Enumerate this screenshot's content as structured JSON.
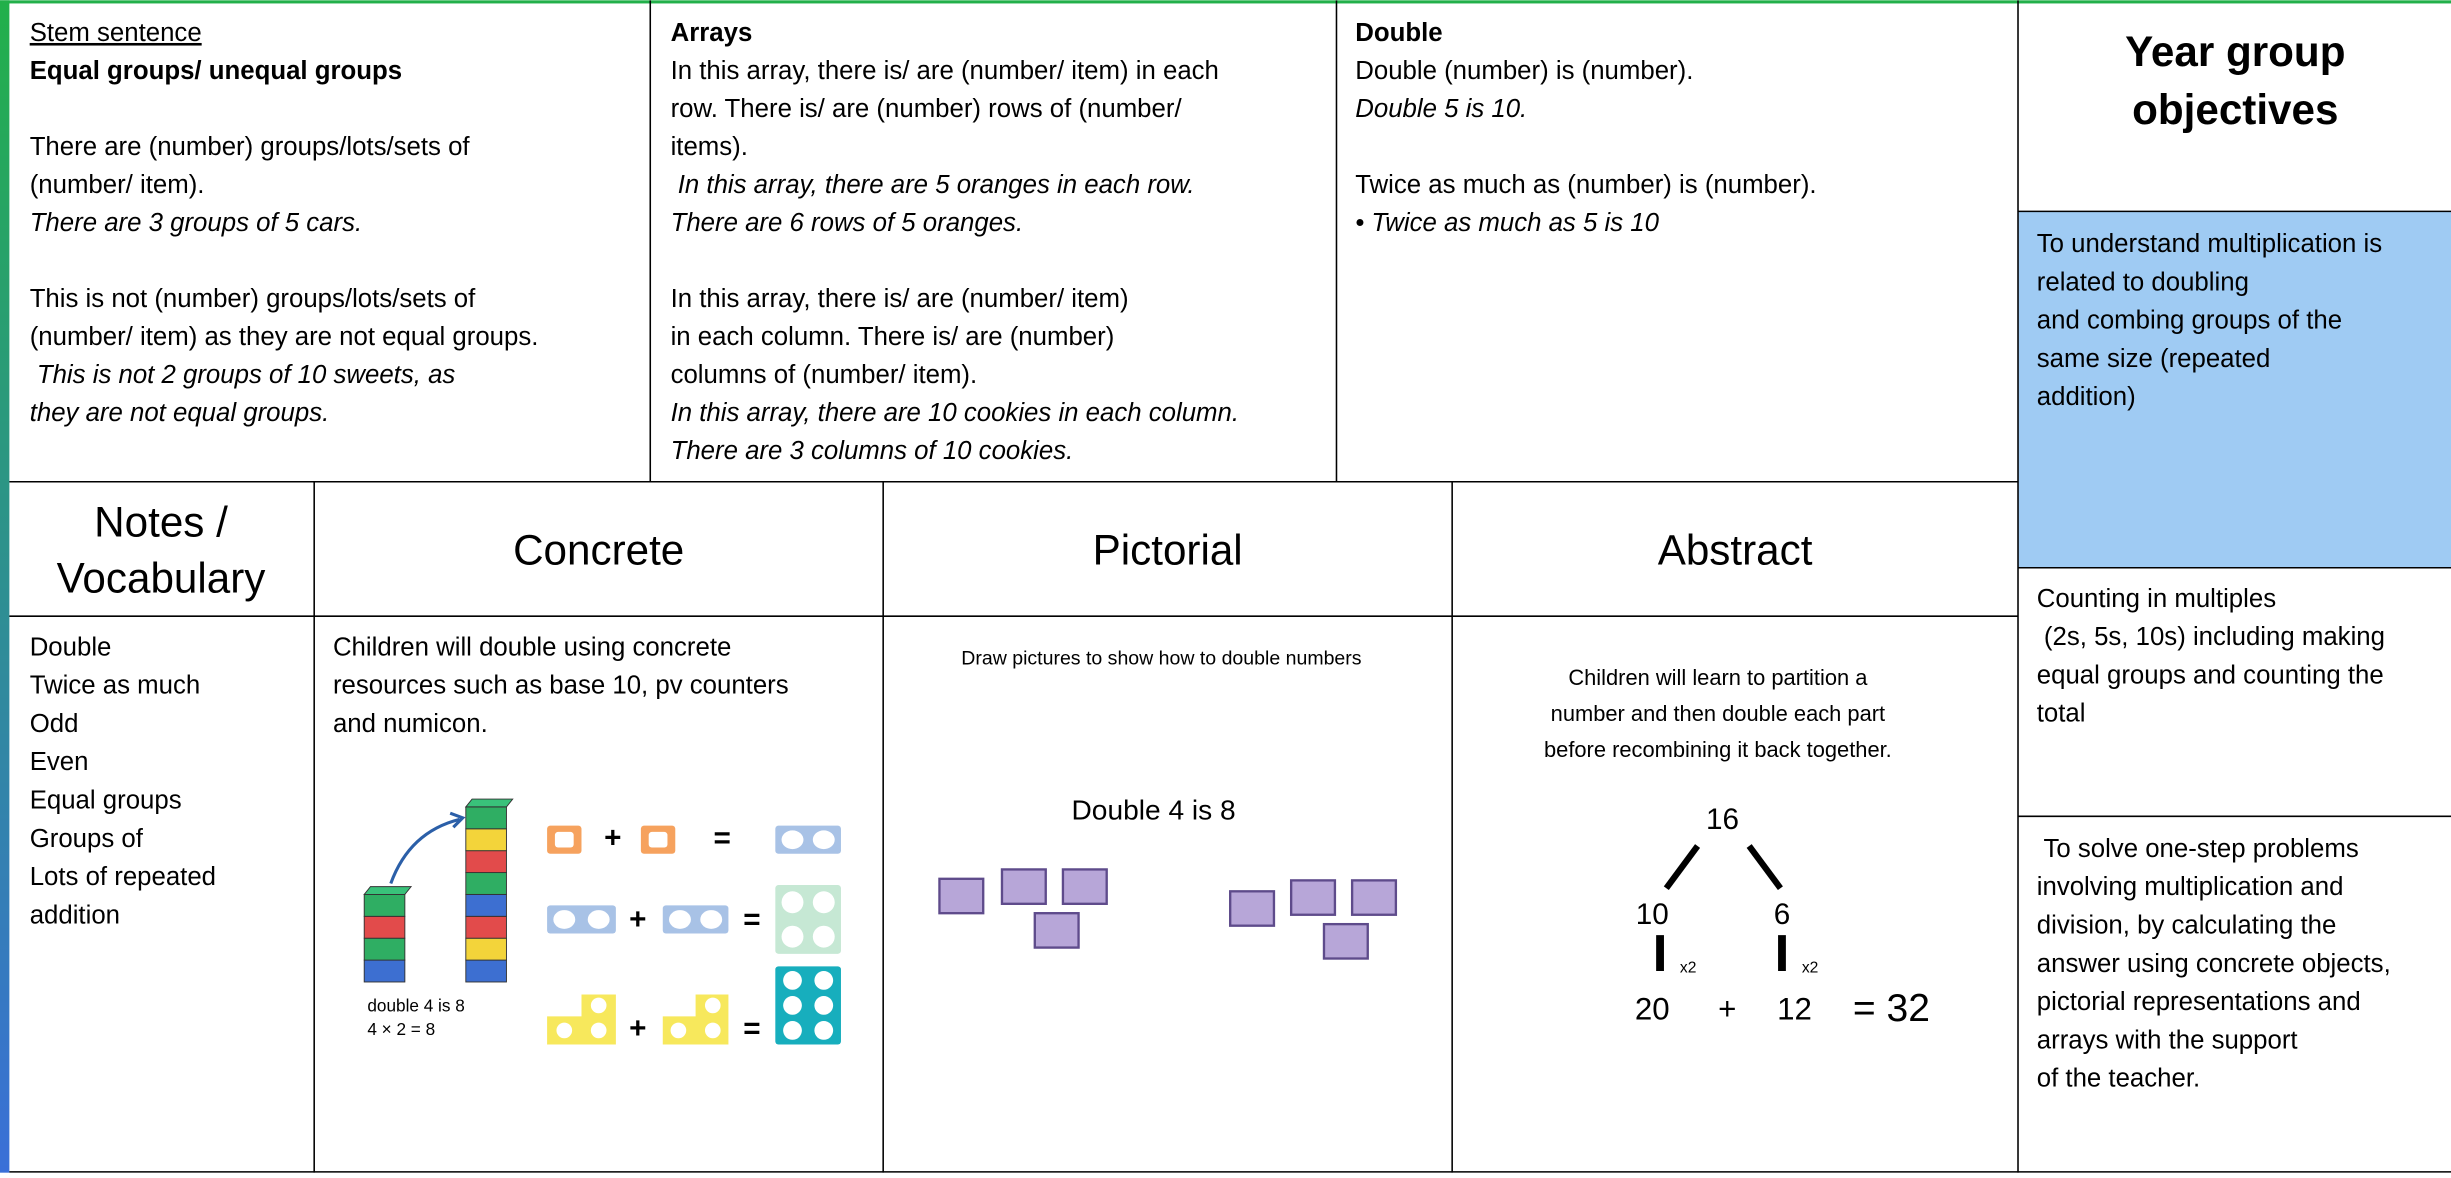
{
  "stem_sentence": {
    "heading": "Stem sentence",
    "subheading": "Equal groups/ unequal groups",
    "paragraphs": [
      [
        {
          "text": "There are (number) groups/lots/sets of"
        },
        {
          "text": "(number/ item)."
        },
        {
          "text": "There are 3 groups of 5 cars.",
          "italic": true
        }
      ],
      [
        {
          "text": "This is not (number) groups/lots/sets of"
        },
        {
          "text": "(number/ item) as they are not equal groups."
        },
        {
          "text": " This is not 2 groups of 10 sweets, as",
          "italic": true
        },
        {
          "text": "they are not equal groups.",
          "italic": true
        }
      ]
    ]
  },
  "arrays": {
    "heading": "Arrays",
    "paragraphs": [
      [
        {
          "text": "In this array, there is/ are (number/ item) in each"
        },
        {
          "text": "row. There is/ are (number) rows of (number/"
        },
        {
          "text": "items)."
        },
        {
          "text": " In this array, there are 5 oranges in each row.",
          "italic": true
        },
        {
          "text": "There are 6 rows of 5 oranges.",
          "italic": true
        }
      ],
      [
        {
          "text": "In this array, there is/ are (number/ item)"
        },
        {
          "text": "in each column. There is/ are (number)"
        },
        {
          "text": "columns of (number/ item)."
        },
        {
          "text": "In this array, there are 10 cookies in each column.",
          "italic": true
        },
        {
          "text": "There are 3 columns of 10 cookies.",
          "italic": true
        }
      ]
    ]
  },
  "double": {
    "heading": "Double",
    "paragraphs": [
      [
        {
          "text": "Double (number) is (number)."
        },
        {
          "text": "Double 5 is 10.",
          "italic": true
        }
      ],
      [
        {
          "text": "Twice as much as (number) is (number)."
        },
        {
          "text": "• Twice as much as 5 is 10",
          "italic": true
        }
      ]
    ]
  },
  "objectives": {
    "title_lines": [
      "Year group",
      "objectives"
    ],
    "items": [
      [
        "To understand multiplication is",
        "related to doubling",
        "and combing groups of the",
        "same size (repeated",
        "addition)"
      ],
      [
        "Counting in multiples",
        " (2s, 5s, 10s) including making",
        "equal groups and counting the",
        "total"
      ],
      [
        " To solve one-step problems",
        "involving multiplication and",
        "division, by calculating the",
        "answer using concrete objects,",
        "pictorial representations and",
        "arrays with the support",
        "of the teacher."
      ]
    ]
  },
  "columns": {
    "notes": {
      "header_lines": [
        "Notes /",
        "Vocabulary"
      ],
      "items": [
        "Double",
        "Twice as much",
        "Odd",
        "Even",
        "Equal groups",
        "Groups of",
        "Lots of repeated",
        "addition"
      ]
    },
    "concrete": {
      "header": "Concrete",
      "lines": [
        "Children will double using concrete",
        "resources such as base 10, pv counters",
        "and numicon."
      ],
      "cube_labels": [
        "double 4 is 8",
        "4 × 2 = 8"
      ],
      "plus": "+",
      "equals": "="
    },
    "pictorial": {
      "header": "Pictorial",
      "caption": "Draw pictures to show how to double numbers",
      "picture_title": "Double 4 is 8"
    },
    "abstract": {
      "header": "Abstract",
      "caption_lines": [
        "Children will learn to partition a",
        "number and then double each part",
        "before recombining it back together."
      ],
      "tree": {
        "whole": "16",
        "parts": [
          "10",
          "6"
        ],
        "multipliers": [
          "x2",
          "x2"
        ],
        "results": [
          "20",
          "12"
        ],
        "plus": "+",
        "total": "= 32"
      }
    }
  }
}
